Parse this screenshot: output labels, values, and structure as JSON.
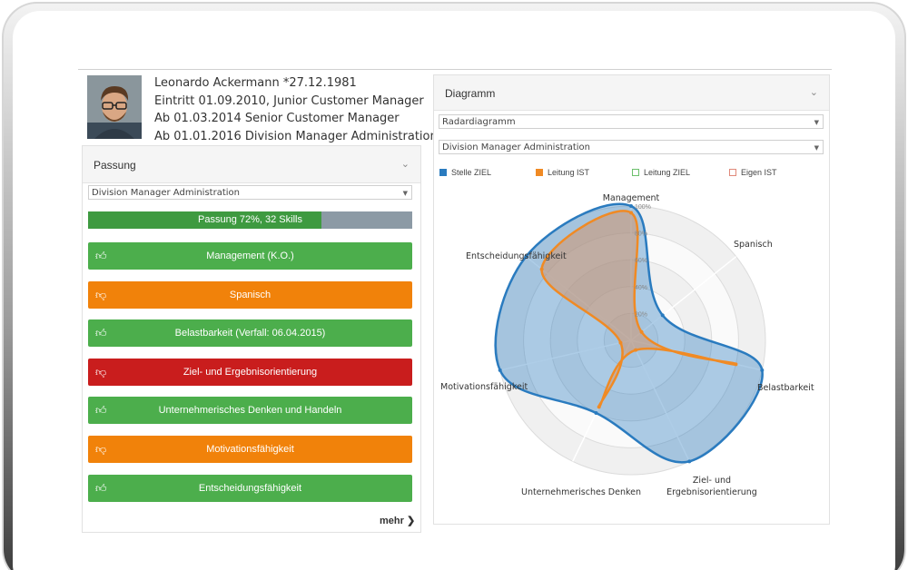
{
  "profile": {
    "line1": "Leonardo Ackermann *27.12.1981",
    "line2": "Eintritt 01.09.2010, Junior Customer Manager",
    "line3": "Ab 01.03.2014 Senior Customer Manager",
    "line4": "Ab 01.01.2016 Division Manager Administration"
  },
  "passung": {
    "title": "Passung",
    "select_value": "Division Manager Administration",
    "progress_label": "Passung 72%, 32 Skills",
    "progress_value": 0.72,
    "skills": [
      {
        "label": "Management (K.O.)",
        "status": "green",
        "icon": "thumbs-up-icon"
      },
      {
        "label": "Spanisch",
        "status": "orange",
        "icon": "thumbs-down-icon"
      },
      {
        "label": "Belastbarkeit (Verfall: 06.04.2015)",
        "status": "green",
        "icon": "thumbs-up-icon"
      },
      {
        "label": "Ziel- und Ergebnisorientierung",
        "status": "red",
        "icon": "thumbs-down-icon"
      },
      {
        "label": "Unternehmerisches Denken und Handeln",
        "status": "green",
        "icon": "thumbs-up-icon"
      },
      {
        "label": "Motivationsfähigkeit",
        "status": "orange",
        "icon": "thumbs-down-icon"
      },
      {
        "label": "Entscheidungsfähigkeit",
        "status": "green",
        "icon": "thumbs-up-icon"
      }
    ],
    "more_label": "mehr"
  },
  "diagramm": {
    "title": "Diagramm",
    "chart_type_select": "Radardiagramm",
    "role_select": "Division Manager Administration"
  },
  "colors": {
    "green": "#4cae4c",
    "orange": "#f1820a",
    "red": "#c91d1d",
    "series_blue": "#2a7bbf",
    "series_orange": "#f08a24",
    "series_green": "#6cc06c",
    "series_salmon": "#e0897a"
  },
  "chart_data": {
    "type": "radar",
    "axes": [
      "Management",
      "Spanisch",
      "Belastbarkeit",
      "Ziel- und Ergebnisorientierung",
      "Unternehmerisches Denken",
      "Motivationsfähigkeit",
      "Entscheidungsfähigkeit"
    ],
    "tick_labels": [
      "20%",
      "40%",
      "60%",
      "80%",
      "100%"
    ],
    "range": [
      0,
      100
    ],
    "legend_placement": "top",
    "series": [
      {
        "name": "Stelle ZIEL",
        "color": "#2a7bbf",
        "values": [
          100,
          30,
          100,
          100,
          60,
          100,
          100
        ]
      },
      {
        "name": "Leitung IST",
        "color": "#f08a24",
        "values": [
          95,
          10,
          80,
          8,
          55,
          8,
          85
        ]
      },
      {
        "name": "Leitung ZIEL",
        "color": "#6cc06c",
        "values": []
      },
      {
        "name": "Eigen IST",
        "color": "#e0897a",
        "values": []
      }
    ]
  }
}
